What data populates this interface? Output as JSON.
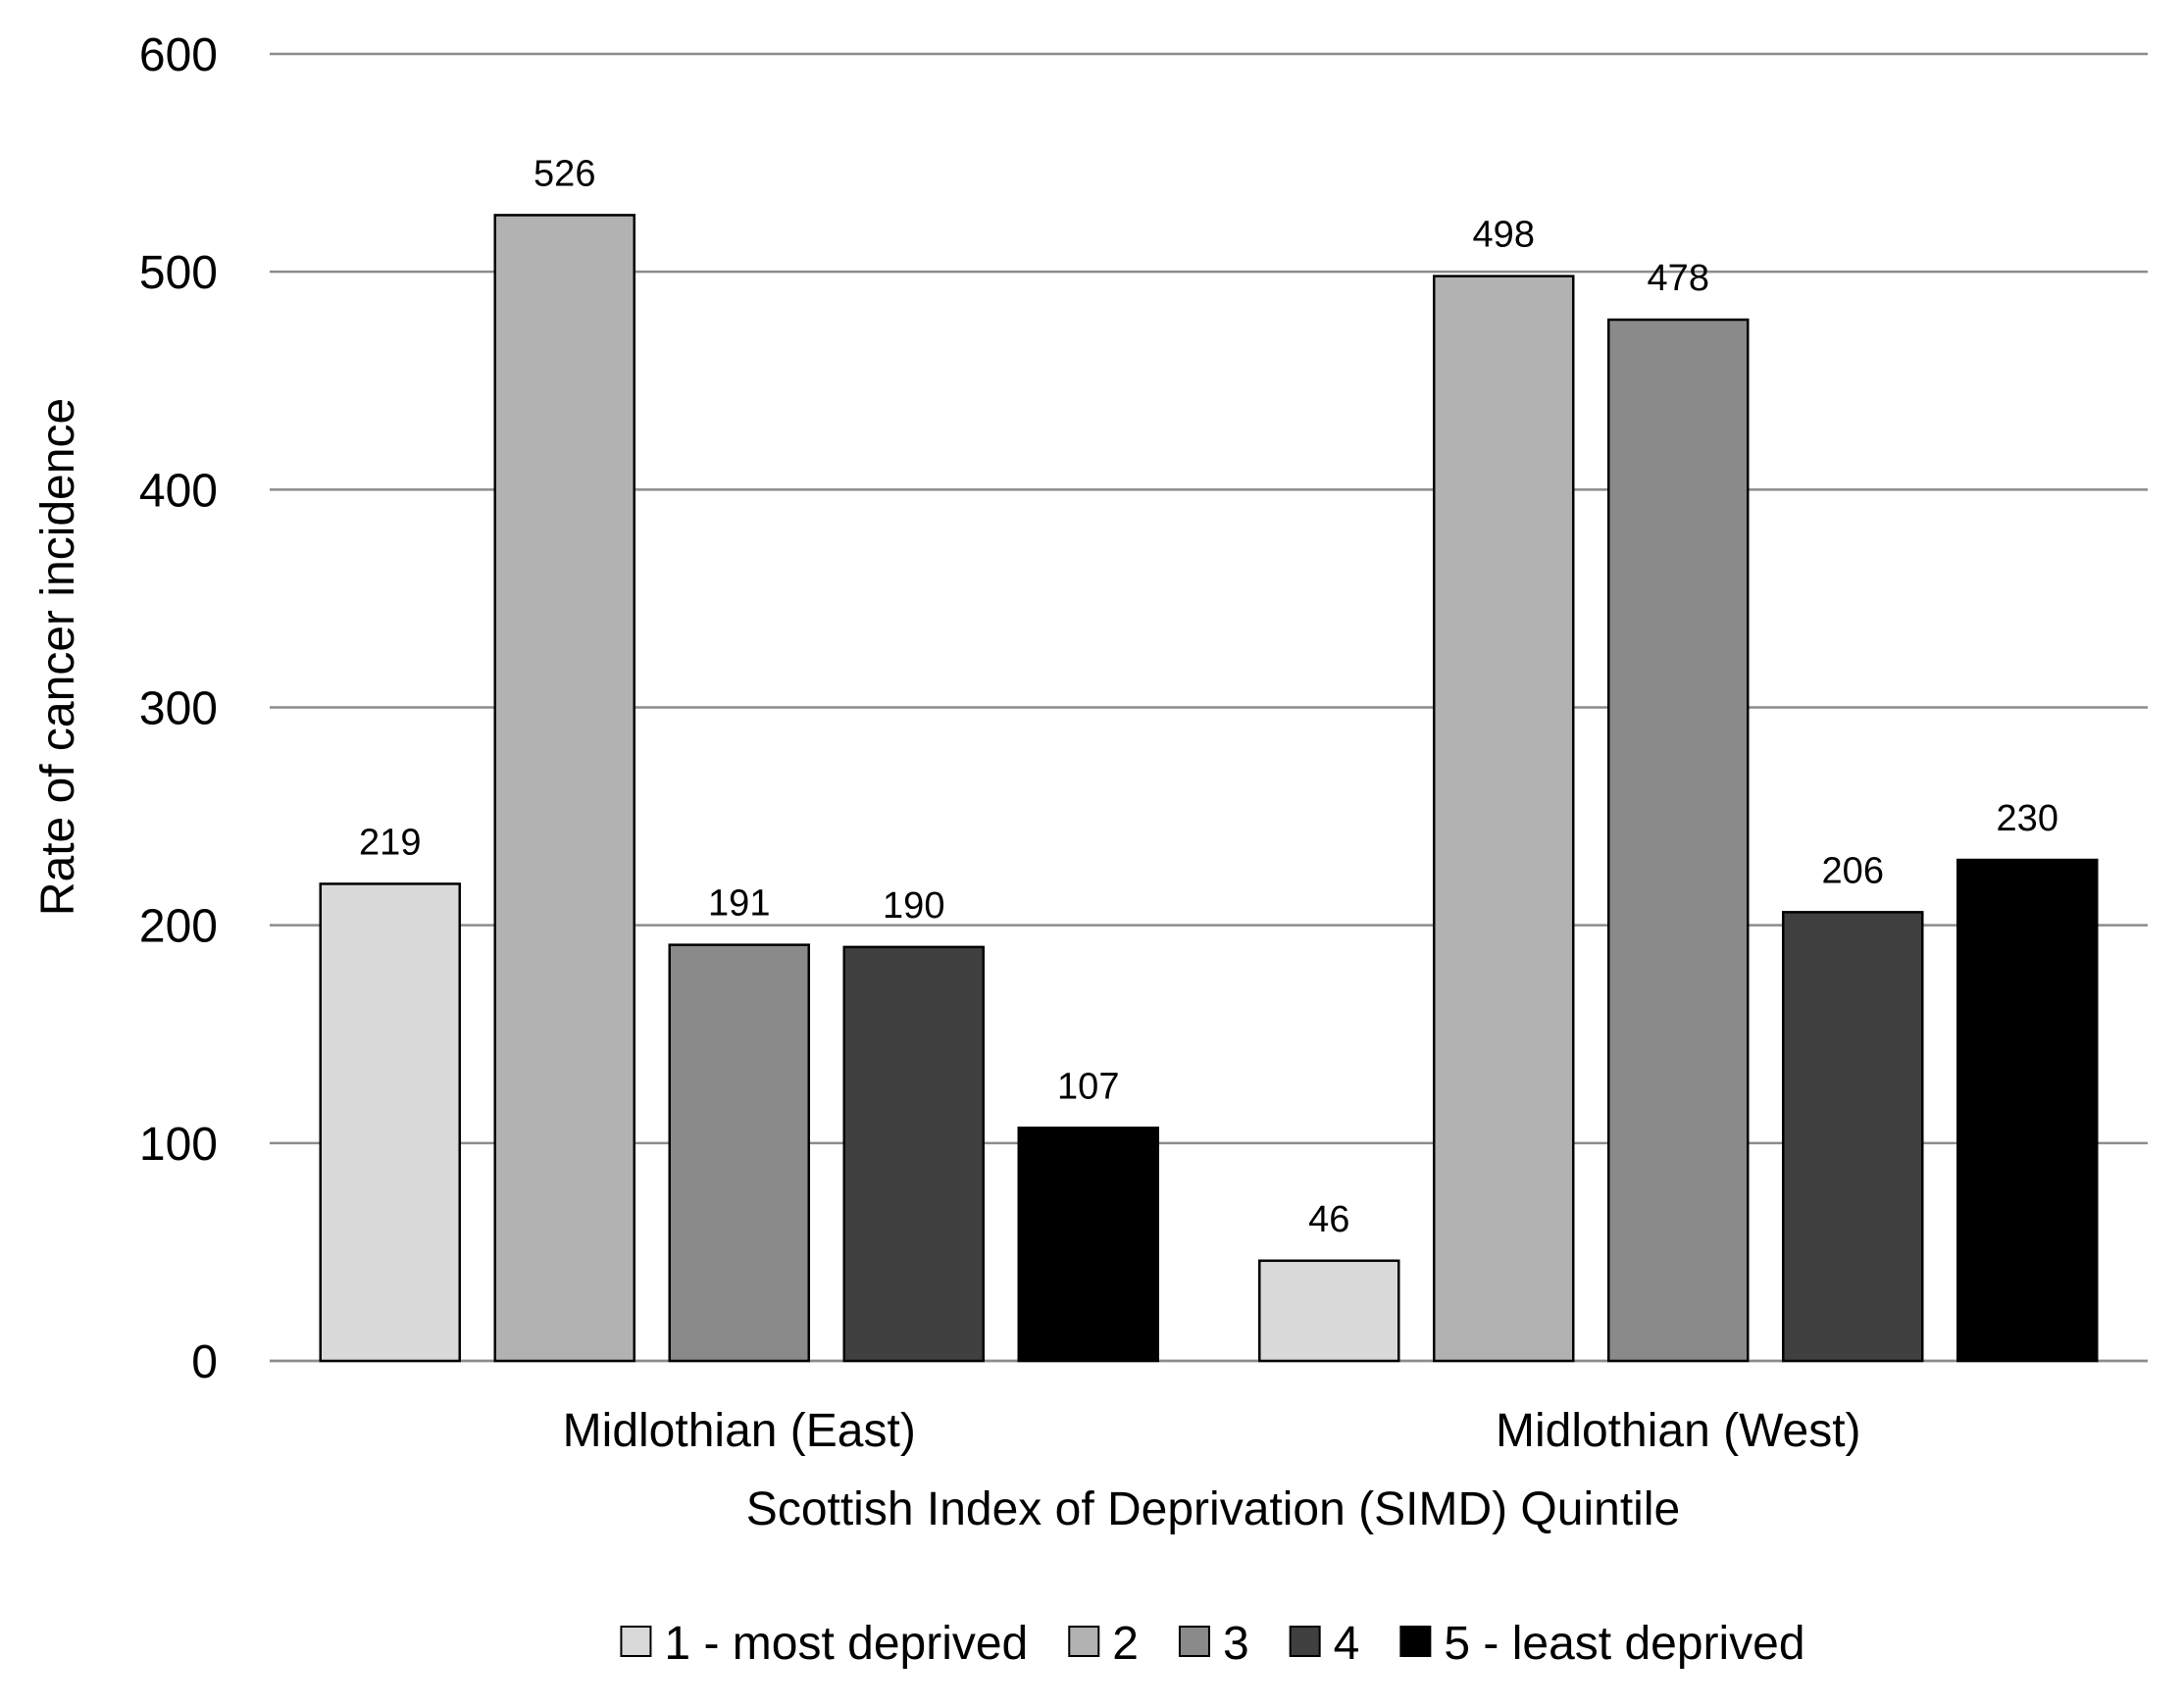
{
  "chart_data": {
    "type": "bar",
    "categories": [
      "Midlothian (East)",
      "Midlothian (West)"
    ],
    "series": [
      {
        "name": "1 - most deprived",
        "color": "#d9d9d9",
        "values": [
          219,
          46
        ]
      },
      {
        "name": "2",
        "color": "#b2b2b2",
        "values": [
          526,
          498
        ]
      },
      {
        "name": "3",
        "color": "#8a8a8a",
        "values": [
          191,
          478
        ]
      },
      {
        "name": "4",
        "color": "#404040",
        "values": [
          190,
          206
        ]
      },
      {
        "name": "5 - least deprived",
        "color": "#000000",
        "values": [
          107,
          230
        ]
      }
    ],
    "title": "",
    "xlabel": "Scottish Index of Deprivation (SIMD) Quintile",
    "ylabel": "Rate of cancer incidence",
    "ylim": [
      0,
      600
    ],
    "yticks": [
      0,
      100,
      200,
      300,
      400,
      500,
      600
    ],
    "grid": true,
    "legend_position": "bottom",
    "data_labels": true
  }
}
